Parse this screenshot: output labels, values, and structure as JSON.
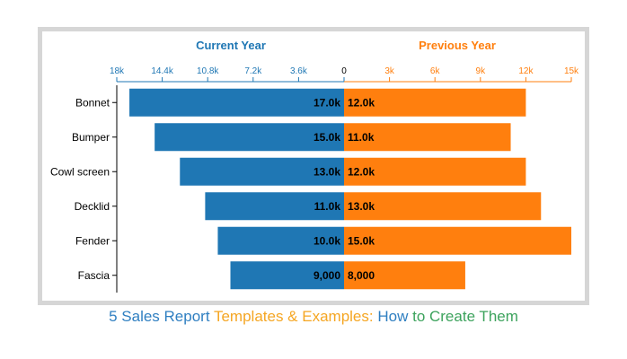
{
  "chart_data": {
    "type": "bar",
    "orientation": "horizontal-diverging",
    "categories": [
      "Bonnet",
      "Bumper",
      "Cowl screen",
      "Decklid",
      "Fender",
      "Fascia"
    ],
    "series": [
      {
        "name": "Current Year",
        "side": "left",
        "values": [
          17000,
          15000,
          13000,
          11000,
          10000,
          9000
        ],
        "labels": [
          "17.0k",
          "15.0k",
          "13.0k",
          "11.0k",
          "10.0k",
          "9,000"
        ],
        "color": "#1f77b4"
      },
      {
        "name": "Previous Year",
        "side": "right",
        "values": [
          12000,
          11000,
          12000,
          13000,
          15000,
          8000
        ],
        "labels": [
          "12.0k",
          "11.0k",
          "12.0k",
          "13.0k",
          "15.0k",
          "8,000"
        ],
        "color": "#ff7f0e"
      }
    ],
    "left_axis": {
      "range": [
        0,
        18000
      ],
      "ticks": [
        18000,
        14400,
        10800,
        7200,
        3600,
        0
      ],
      "tick_labels": [
        "18k",
        "14.4k",
        "10.8k",
        "7.2k",
        "3.6k",
        "0"
      ]
    },
    "right_axis": {
      "range": [
        0,
        15000
      ],
      "ticks": [
        3000,
        6000,
        9000,
        12000,
        15000
      ],
      "tick_labels": [
        "3k",
        "6k",
        "9k",
        "12k",
        "15k"
      ]
    },
    "grid": false,
    "legend": "none"
  },
  "caption": {
    "parts": [
      {
        "text": "5 Sales Report",
        "color": "#2f7fc1"
      },
      {
        "text": "Templates & Examples:",
        "color": "#f5a623"
      },
      {
        "text": "How",
        "color": "#2f7fc1"
      },
      {
        "text": "to Create Them",
        "color": "#3da35d"
      }
    ]
  }
}
